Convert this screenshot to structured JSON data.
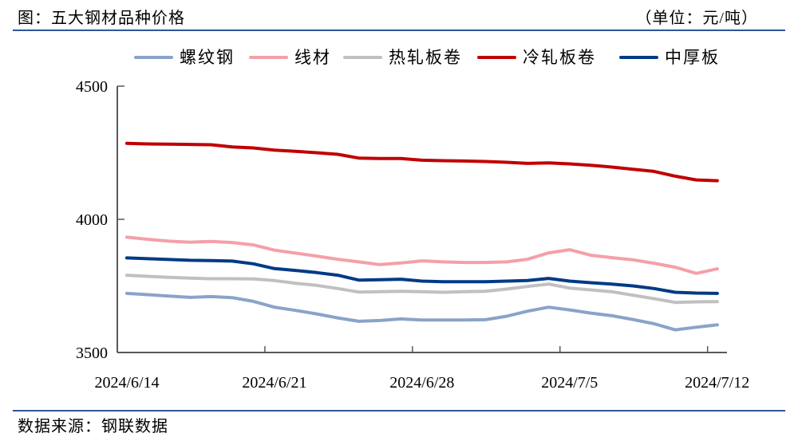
{
  "header": {
    "title": "图：五大钢材品种价格",
    "unit": "（单位：元/吨）"
  },
  "footer": {
    "source": "数据来源：钢联数据"
  },
  "chart_data": {
    "type": "line",
    "title": "五大钢材品种价格",
    "ylabel": "元/吨",
    "ylim": [
      3500,
      4500
    ],
    "yticks": [
      "4500",
      "4000",
      "3500"
    ],
    "xticks": [
      "2024/6/14",
      "2024/6/21",
      "2024/6/28",
      "2024/7/5",
      "2024/7/12"
    ],
    "grid": false,
    "legend": "top",
    "x": [
      "2024/6/14",
      "2024/6/15",
      "2024/6/16",
      "2024/6/17",
      "2024/6/18",
      "2024/6/19",
      "2024/6/20",
      "2024/6/21",
      "2024/6/22",
      "2024/6/23",
      "2024/6/24",
      "2024/6/25",
      "2024/6/26",
      "2024/6/27",
      "2024/6/28",
      "2024/6/29",
      "2024/6/30",
      "2024/7/1",
      "2024/7/2",
      "2024/7/3",
      "2024/7/4",
      "2024/7/5",
      "2024/7/6",
      "2024/7/7",
      "2024/7/8",
      "2024/7/9",
      "2024/7/10",
      "2024/7/11",
      "2024/7/12"
    ],
    "series": [
      {
        "name": "螺纹钢",
        "color": "#8aa3c8",
        "values": [
          3722,
          3717,
          3712,
          3707,
          3710,
          3706,
          3692,
          3670,
          3658,
          3645,
          3630,
          3617,
          3620,
          3626,
          3622,
          3622,
          3622,
          3623,
          3636,
          3655,
          3670,
          3660,
          3648,
          3638,
          3624,
          3608,
          3585,
          3595,
          3604
        ]
      },
      {
        "name": "线材",
        "color": "#f4a0a8",
        "values": [
          3933,
          3925,
          3918,
          3914,
          3917,
          3913,
          3904,
          3884,
          3873,
          3862,
          3850,
          3840,
          3830,
          3836,
          3844,
          3840,
          3838,
          3838,
          3840,
          3850,
          3874,
          3886,
          3865,
          3856,
          3848,
          3835,
          3820,
          3797,
          3814
        ]
      },
      {
        "name": "热轧板卷",
        "color": "#c0c0c0",
        "values": [
          3790,
          3786,
          3782,
          3779,
          3777,
          3777,
          3776,
          3770,
          3760,
          3752,
          3740,
          3727,
          3728,
          3730,
          3728,
          3726,
          3728,
          3730,
          3738,
          3748,
          3757,
          3742,
          3735,
          3728,
          3715,
          3702,
          3688,
          3690,
          3691
        ]
      },
      {
        "name": "冷轧板卷",
        "color": "#c00000",
        "values": [
          4285,
          4283,
          4282,
          4281,
          4280,
          4272,
          4268,
          4260,
          4255,
          4250,
          4244,
          4230,
          4228,
          4228,
          4222,
          4220,
          4219,
          4217,
          4214,
          4210,
          4212,
          4208,
          4203,
          4196,
          4188,
          4180,
          4162,
          4148,
          4145
        ]
      },
      {
        "name": "中厚板",
        "color": "#003a85",
        "values": [
          3855,
          3852,
          3849,
          3846,
          3845,
          3843,
          3833,
          3815,
          3808,
          3800,
          3790,
          3772,
          3773,
          3775,
          3768,
          3766,
          3766,
          3766,
          3768,
          3770,
          3778,
          3768,
          3762,
          3757,
          3750,
          3740,
          3726,
          3723,
          3722
        ]
      }
    ]
  }
}
